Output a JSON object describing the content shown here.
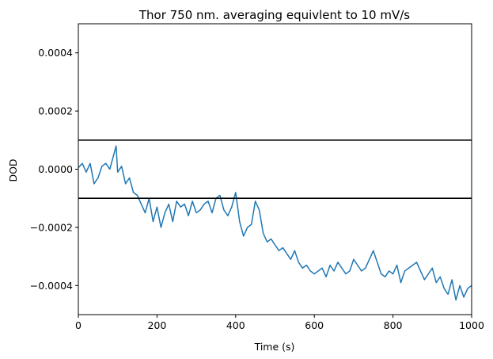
{
  "chart_data": {
    "type": "line",
    "title": "Thor 750 nm. averaging equivlent to 10 mV/s",
    "xlabel": "Time (s)",
    "ylabel": "DOD",
    "xlim": [
      0,
      1000
    ],
    "ylim": [
      -0.0005,
      0.0005
    ],
    "xticks": [
      0,
      200,
      400,
      600,
      800,
      1000
    ],
    "xtick_labels": [
      "0",
      "200",
      "400",
      "600",
      "800",
      "1000"
    ],
    "yticks": [
      0.0004,
      0.0002,
      0.0,
      -0.0002,
      -0.0004
    ],
    "ytick_labels": [
      "0.0004",
      "0.0002",
      "0.0000",
      "−0.0002",
      "−0.0004"
    ],
    "grid": false,
    "hlines": [
      {
        "y": 0.0001,
        "color": "#000000"
      },
      {
        "y": -0.0001,
        "color": "#000000"
      }
    ],
    "series": [
      {
        "color": "#1f77b4",
        "x": [
          0,
          10,
          20,
          30,
          40,
          50,
          60,
          70,
          80,
          90,
          96,
          100,
          110,
          120,
          130,
          140,
          150,
          160,
          170,
          180,
          190,
          200,
          210,
          220,
          230,
          240,
          250,
          260,
          270,
          280,
          290,
          300,
          310,
          320,
          330,
          340,
          350,
          360,
          370,
          380,
          390,
          400,
          410,
          420,
          430,
          440,
          450,
          460,
          470,
          480,
          490,
          500,
          510,
          520,
          530,
          540,
          550,
          560,
          570,
          580,
          590,
          600,
          610,
          620,
          630,
          640,
          650,
          660,
          670,
          680,
          690,
          700,
          710,
          720,
          730,
          740,
          750,
          760,
          770,
          780,
          790,
          800,
          810,
          820,
          830,
          840,
          850,
          860,
          870,
          880,
          890,
          900,
          910,
          920,
          930,
          940,
          950,
          960,
          970,
          980,
          990,
          1000
        ],
        "y": [
          5e-06,
          2e-05,
          -1e-05,
          2e-05,
          -5e-05,
          -3e-05,
          1e-05,
          2e-05,
          0.0,
          5e-05,
          8e-05,
          -1e-05,
          1e-05,
          -5e-05,
          -3e-05,
          -8e-05,
          -9e-05,
          -0.00012,
          -0.00015,
          -0.0001,
          -0.00018,
          -0.00013,
          -0.0002,
          -0.00015,
          -0.00012,
          -0.00018,
          -0.00011,
          -0.00013,
          -0.00012,
          -0.00016,
          -0.00011,
          -0.00015,
          -0.00014,
          -0.00012,
          -0.00011,
          -0.00015,
          -0.0001,
          -9e-05,
          -0.00014,
          -0.00016,
          -0.00013,
          -8e-05,
          -0.00018,
          -0.00023,
          -0.0002,
          -0.00019,
          -0.00011,
          -0.00014,
          -0.00022,
          -0.00025,
          -0.00024,
          -0.00026,
          -0.00028,
          -0.00027,
          -0.00029,
          -0.00031,
          -0.00028,
          -0.00032,
          -0.00034,
          -0.00033,
          -0.00035,
          -0.00036,
          -0.00035,
          -0.00034,
          -0.00037,
          -0.00033,
          -0.00035,
          -0.00032,
          -0.00034,
          -0.00036,
          -0.00035,
          -0.00031,
          -0.00033,
          -0.00035,
          -0.00034,
          -0.00031,
          -0.00028,
          -0.00032,
          -0.00036,
          -0.00037,
          -0.00035,
          -0.00036,
          -0.00033,
          -0.00039,
          -0.00035,
          -0.00034,
          -0.00033,
          -0.00032,
          -0.00035,
          -0.00038,
          -0.00036,
          -0.00034,
          -0.00039,
          -0.00037,
          -0.00041,
          -0.00043,
          -0.00038,
          -0.00045,
          -0.0004,
          -0.00044,
          -0.00041,
          -0.0004
        ]
      }
    ]
  }
}
